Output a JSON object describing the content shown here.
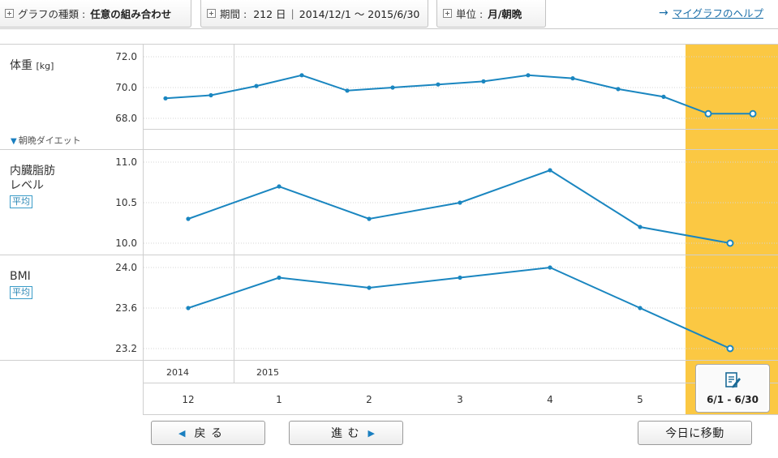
{
  "topbar": {
    "tab1": {
      "label": "グラフの種類 :",
      "value": "任意の組み合わせ"
    },
    "tab2": {
      "label": "期間 :",
      "days": "212 日",
      "range": "2014/12/1 〜 2015/6/30"
    },
    "tab3": {
      "label": "単位 :",
      "value": "月/朝晩"
    },
    "help": "マイグラフのヘルプ"
  },
  "rows": {
    "weight": {
      "title": "体重",
      "unit": "[kg]",
      "diet": "朝晩ダイエット"
    },
    "visceral": {
      "title1": "内臓脂肪",
      "title2": "レベル",
      "badge": "平均"
    },
    "bmi": {
      "title": "BMI",
      "badge": "平均"
    }
  },
  "highlight_color": "#fbc843",
  "line_color": "#1a86c0",
  "chart_data": [
    {
      "type": "line",
      "title": "体重",
      "ylabel": "[kg]",
      "yticks": [
        "72.0",
        "70.0",
        "68.0"
      ],
      "ylim": [
        66.8,
        72.6
      ],
      "x": [
        1,
        2,
        3,
        4,
        5,
        6,
        7,
        8,
        9,
        10,
        11,
        12,
        13,
        14
      ],
      "values": [
        69.3,
        69.5,
        70.1,
        70.8,
        69.8,
        70.0,
        70.2,
        70.4,
        70.8,
        70.6,
        69.9,
        69.4,
        68.3,
        68.3
      ],
      "open_points": [
        13,
        14
      ]
    },
    {
      "type": "line",
      "title": "内臓脂肪レベル",
      "yticks": [
        "11.0",
        "10.5",
        "10.0"
      ],
      "ylim": [
        9.9,
        11.05
      ],
      "x": [
        "12",
        "1",
        "2",
        "3",
        "4",
        "5",
        "6"
      ],
      "values": [
        10.3,
        10.7,
        10.3,
        10.5,
        10.9,
        10.2,
        10.0
      ],
      "open_points": [
        6
      ]
    },
    {
      "type": "line",
      "title": "BMI",
      "yticks": [
        "24.0",
        "23.6",
        "23.2"
      ],
      "ylim": [
        23.1,
        24.05
      ],
      "x": [
        "12",
        "1",
        "2",
        "3",
        "4",
        "5",
        "6"
      ],
      "values": [
        23.6,
        23.9,
        23.8,
        23.9,
        24.0,
        23.6,
        23.2
      ],
      "open_points": [
        6
      ]
    }
  ],
  "axis": {
    "years": [
      {
        "label": "2014"
      },
      {
        "label": "2015"
      }
    ],
    "months": [
      "12",
      "1",
      "2",
      "3",
      "4",
      "5"
    ]
  },
  "edit": {
    "range": "6/1  -  6/30"
  },
  "nav": {
    "back": "戻 る",
    "forward": "進 む",
    "today": "今日に移動"
  }
}
